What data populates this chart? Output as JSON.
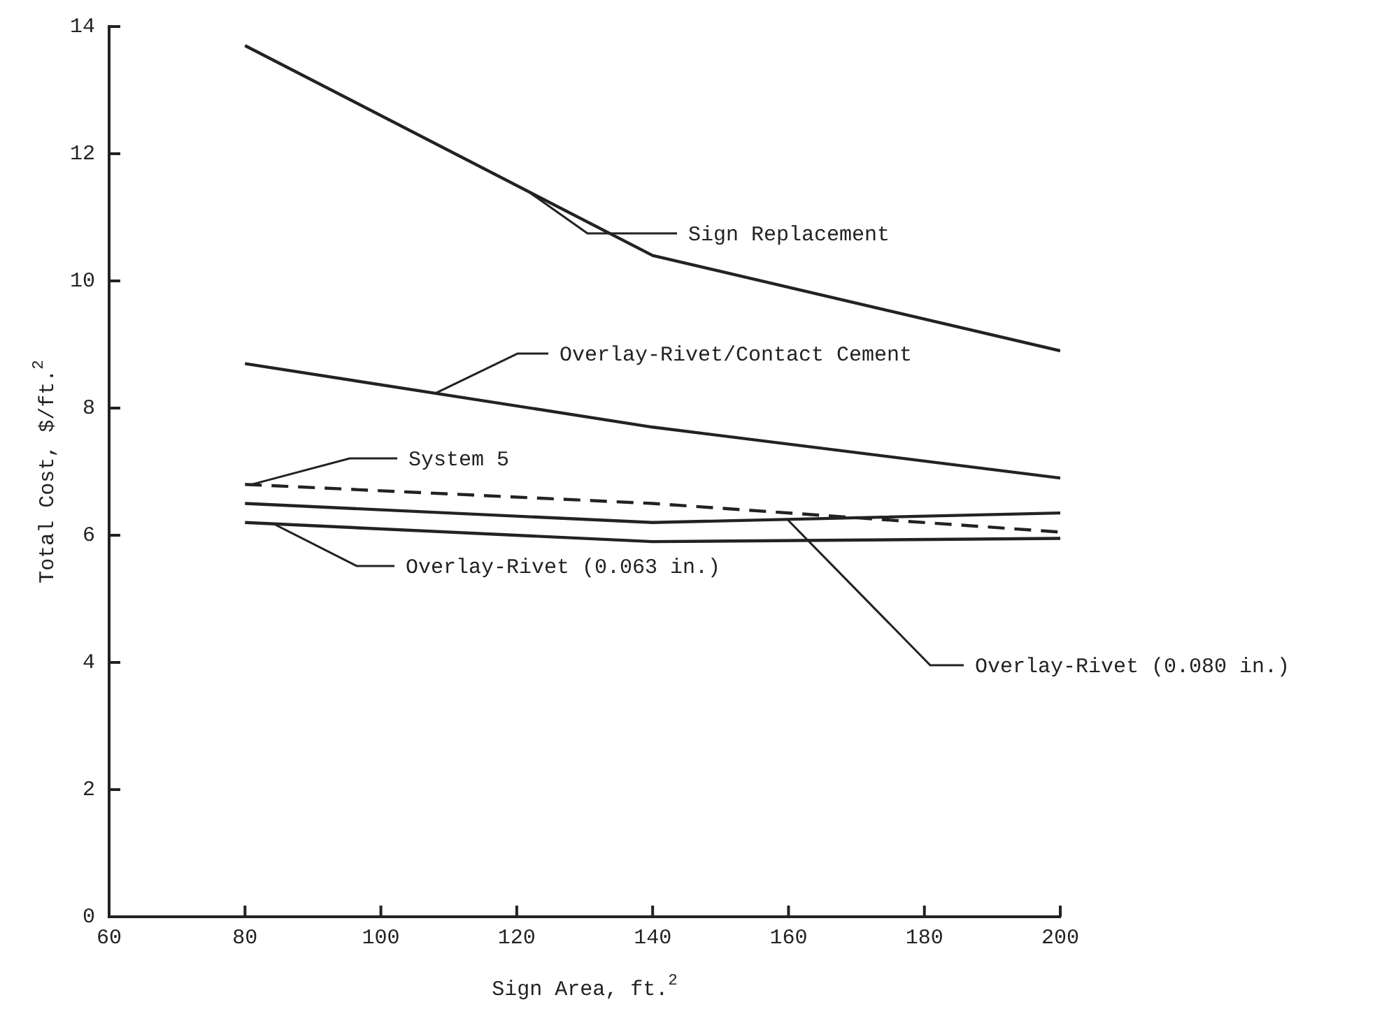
{
  "chart_data": {
    "type": "line",
    "xlabel": "Sign Area, ft.$^{2}$",
    "ylabel": "Total Cost, $/ft.$^{2}$",
    "x": [
      80,
      140,
      200
    ],
    "series": [
      {
        "name": "Sign Replacement",
        "color": "#222222",
        "values": [
          13.7,
          10.4,
          8.9
        ]
      },
      {
        "name": "Overlay-Rivet/Contact Cement",
        "color": "#222222",
        "values": [
          8.7,
          7.7,
          6.9
        ]
      },
      {
        "name": "System 5",
        "color": "#222222",
        "values": [
          6.8,
          6.5,
          6.05
        ],
        "line_style": "dashed"
      },
      {
        "name": "Overlay-Rivet (0.080 in.)",
        "color": "#222222",
        "values": [
          6.5,
          6.2,
          6.35
        ]
      },
      {
        "name": "Overlay-Rivet (0.063 in.)",
        "color": "#222222",
        "values": [
          6.2,
          5.9,
          5.95
        ]
      }
    ],
    "xlim": [
      60,
      200
    ],
    "xticks": [
      60,
      80,
      100,
      120,
      140,
      160,
      180,
      200
    ],
    "ylim": [
      0,
      14
    ],
    "yticks": [
      0,
      2,
      4,
      6,
      8,
      10,
      12,
      14
    ],
    "grid": false,
    "legend": false,
    "marker": "none",
    "line_style": "solid"
  }
}
